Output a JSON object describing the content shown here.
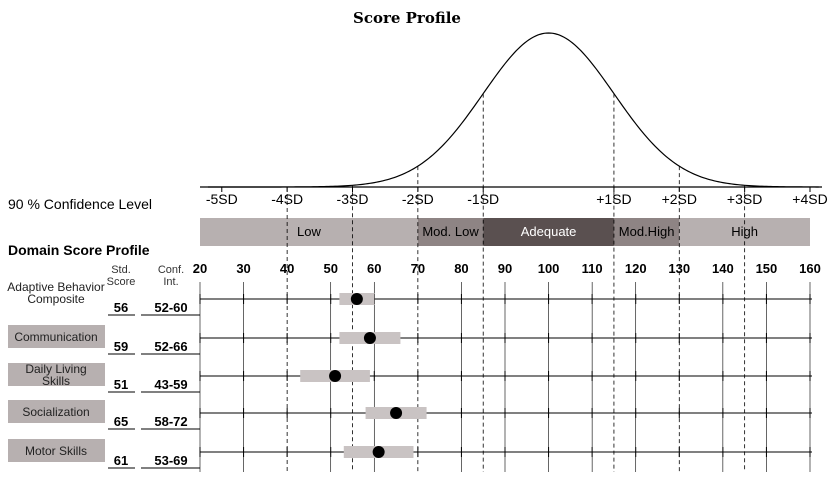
{
  "chart_data": {
    "type": "scatter",
    "title": "Score Profile",
    "confidence_label": "90 % Confidence Level",
    "profile_label": "Domain Score Profile",
    "columns": {
      "std": [
        "Std.",
        "Score"
      ],
      "conf": [
        "Conf.",
        "Int."
      ]
    },
    "sd_axis": {
      "labels": [
        "-5SD",
        "-4SD",
        "-3SD",
        "-2SD",
        "-1SD",
        "+1SD",
        "+2SD",
        "+3SD",
        "+4SD"
      ],
      "values": [
        25,
        40,
        55,
        70,
        85,
        115,
        130,
        145,
        160
      ]
    },
    "bands": [
      {
        "label": "Low",
        "from": 20,
        "to": 70,
        "color": "#b7b0b0",
        "text": "dark"
      },
      {
        "label": "Mod. Low",
        "from": 70,
        "to": 85,
        "color": "#8e8484",
        "text": "dark"
      },
      {
        "label": "Adequate",
        "from": 85,
        "to": 115,
        "color": "#5a5050",
        "text": "light"
      },
      {
        "label": "Mod.High",
        "from": 115,
        "to": 130,
        "color": "#8e8484",
        "text": "dark"
      },
      {
        "label": "High",
        "from": 130,
        "to": 160,
        "color": "#b7b0b0",
        "text": "dark"
      }
    ],
    "x_ticks": [
      20,
      30,
      40,
      50,
      60,
      70,
      80,
      90,
      100,
      110,
      120,
      130,
      140,
      150,
      160
    ],
    "xlim": [
      20,
      160
    ],
    "curve": {
      "mean": 100,
      "sd": 15
    },
    "domains": [
      {
        "label_lines": [
          "Adaptive Behavior",
          "Composite"
        ],
        "boxed": false,
        "score": 56,
        "ci_low": 52,
        "ci_high": 60,
        "ci_text": "52-60"
      },
      {
        "label_lines": [
          "Communication"
        ],
        "boxed": true,
        "score": 59,
        "ci_low": 52,
        "ci_high": 66,
        "ci_text": "52-66"
      },
      {
        "label_lines": [
          "Daily Living",
          "Skills"
        ],
        "boxed": true,
        "score": 51,
        "ci_low": 43,
        "ci_high": 59,
        "ci_text": "43-59"
      },
      {
        "label_lines": [
          "Socialization"
        ],
        "boxed": true,
        "score": 65,
        "ci_low": 58,
        "ci_high": 72,
        "ci_text": "58-72"
      },
      {
        "label_lines": [
          "Motor Skills"
        ],
        "boxed": true,
        "score": 61,
        "ci_low": 53,
        "ci_high": 69,
        "ci_text": "53-69"
      }
    ]
  }
}
